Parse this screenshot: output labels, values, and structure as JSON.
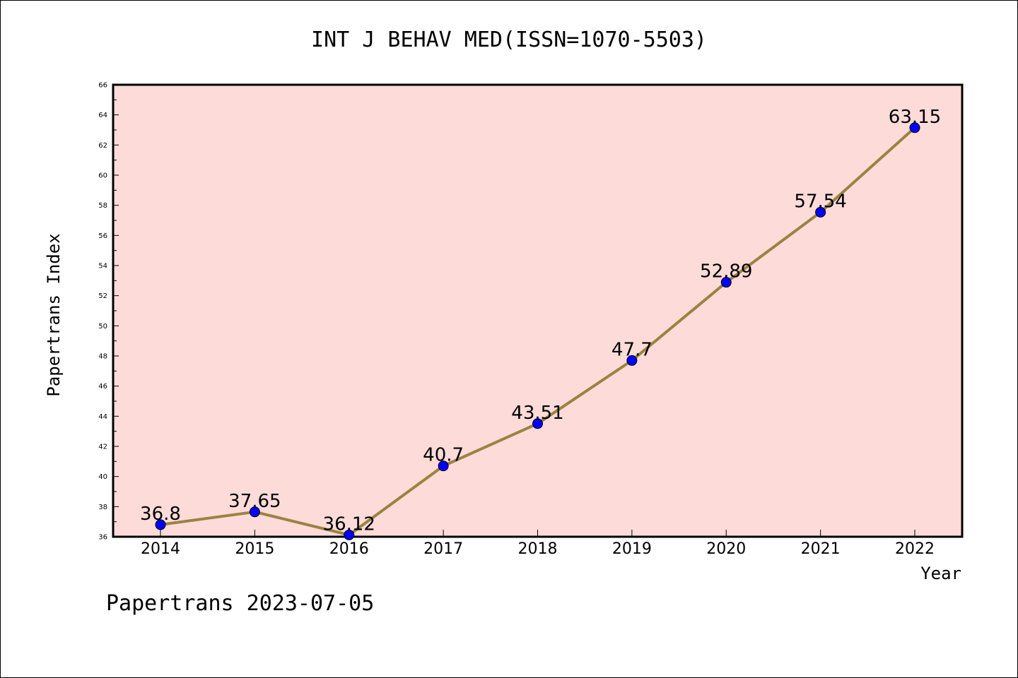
{
  "chart_data": {
    "type": "line",
    "title": "INT J BEHAV MED(ISSN=1070-5503)",
    "xlabel": "Year",
    "ylabel": "Papertrans Index",
    "x": [
      "2014",
      "2015",
      "2016",
      "2017",
      "2018",
      "2019",
      "2020",
      "2021",
      "2022"
    ],
    "values": [
      36.8,
      37.65,
      36.12,
      40.7,
      43.51,
      47.7,
      52.89,
      57.54,
      63.15
    ],
    "data_labels": [
      "36.8",
      "37.65",
      "36.12",
      "40.7",
      "43.51",
      "47.7",
      "52.89",
      "57.54",
      "63.15"
    ],
    "ylim": [
      36,
      66
    ],
    "yticks": [
      36,
      38,
      40,
      42,
      44,
      46,
      48,
      50,
      52,
      54,
      56,
      58,
      60,
      62,
      64,
      66
    ],
    "grid": false,
    "colors": {
      "plot_background": "#fddbd9",
      "line": "#9a8340",
      "marker": "#0000ff"
    }
  },
  "footer": "Papertrans 2023-07-05"
}
